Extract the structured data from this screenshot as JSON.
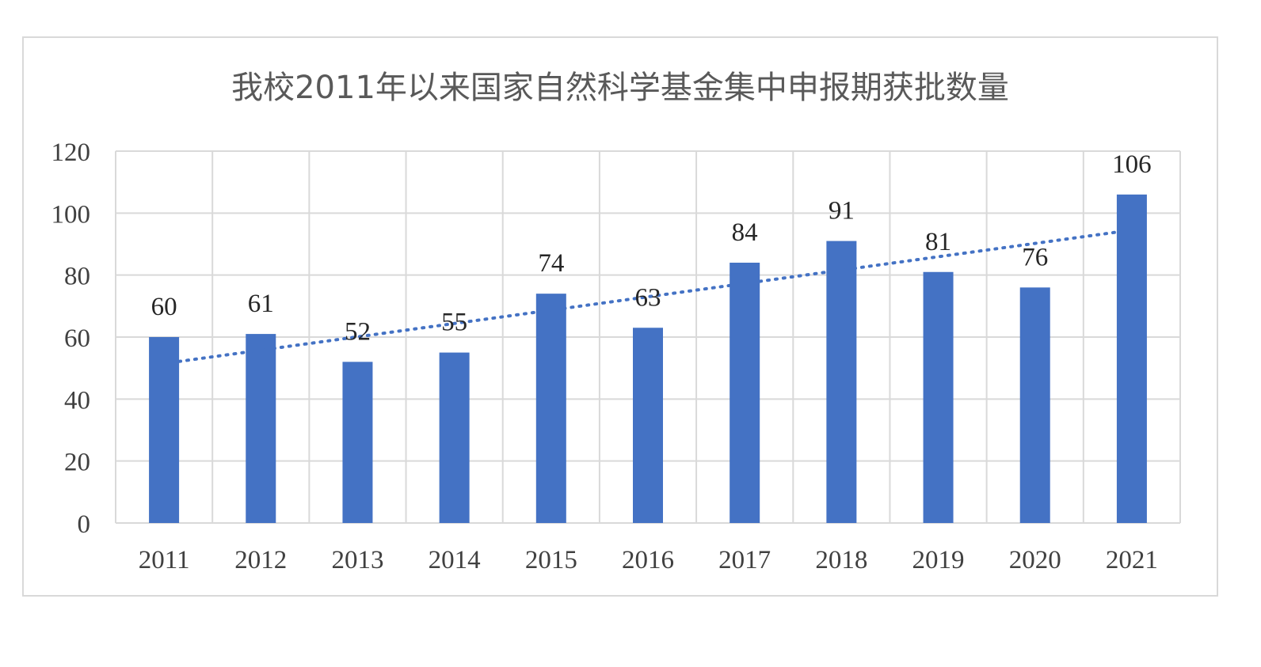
{
  "chart_data": {
    "type": "bar",
    "title": "我校2011年以来国家自然科学基金集中申报期获批数量",
    "categories": [
      "2011",
      "2012",
      "2013",
      "2014",
      "2015",
      "2016",
      "2017",
      "2018",
      "2019",
      "2020",
      "2021"
    ],
    "values": [
      60,
      61,
      52,
      55,
      74,
      63,
      84,
      91,
      81,
      76,
      106
    ],
    "ylim": [
      0,
      120
    ],
    "yticks": [
      "0",
      "20",
      "40",
      "60",
      "80",
      "100",
      "120"
    ],
    "xlabel": "",
    "ylabel": "",
    "grid": true,
    "trendline": {
      "type": "linear",
      "style": "dotted"
    },
    "colors": {
      "bar": "#4472c4",
      "trendline": "#4472c4",
      "grid": "#d9d9d9",
      "title": "#595959",
      "axis_text": "#404040"
    }
  }
}
